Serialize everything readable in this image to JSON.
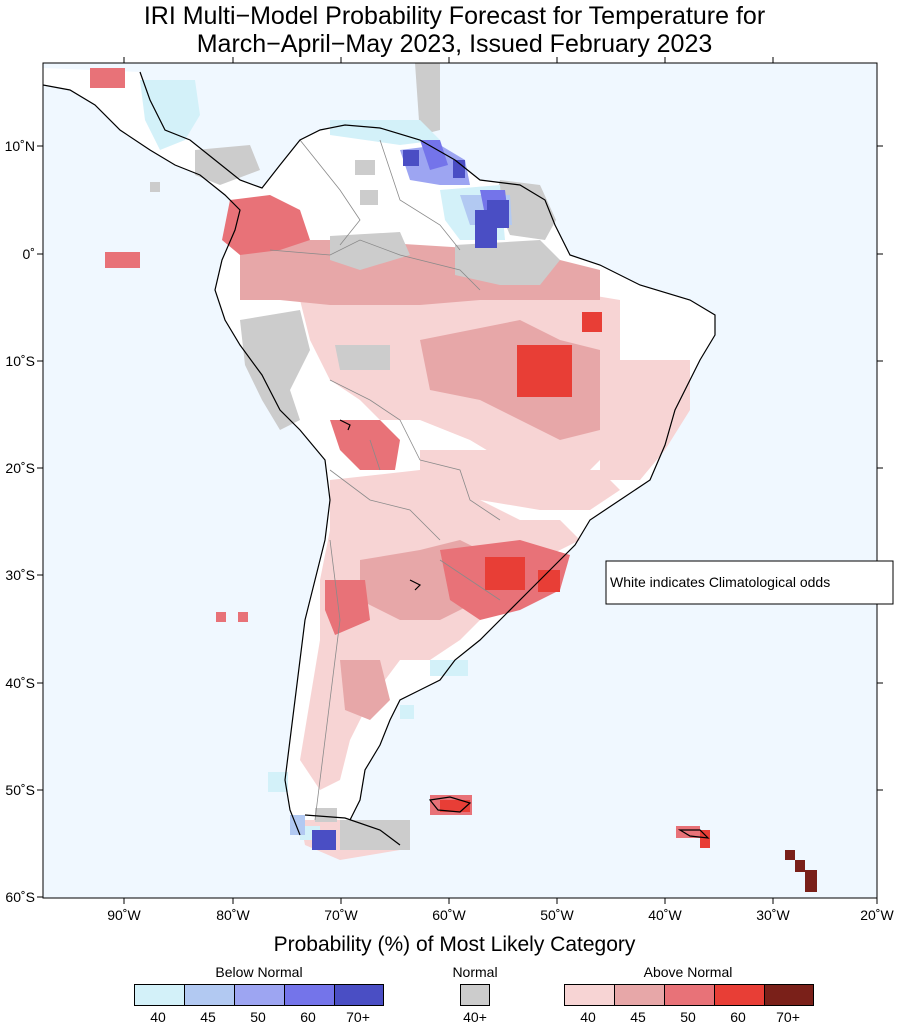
{
  "title_line1": "IRI Multi−Model Probability Forecast for Temperature for",
  "title_line2": "March−April−May 2023, Issued February 2023",
  "map": {
    "lon_ticks": [
      "90˚W",
      "80˚W",
      "70˚W",
      "60˚W",
      "50˚W",
      "40˚W",
      "30˚W",
      "20˚W"
    ],
    "lat_ticks": [
      "10˚N",
      "0˚",
      "10˚S",
      "20˚S",
      "30˚S",
      "40˚S",
      "50˚S",
      "60˚S"
    ],
    "annotation": "White indicates Climatological odds",
    "ocean_color": "#f0f8ff"
  },
  "legend": {
    "title": "Probability (%) of Most Likely Category",
    "below": {
      "label": "Below Normal",
      "ticks": [
        "40",
        "45",
        "50",
        "60",
        "70+"
      ],
      "colors": [
        "#d3f1f9",
        "#b2c9f2",
        "#9da5f2",
        "#7474ea",
        "#4a4ec4"
      ]
    },
    "normal": {
      "label": "Normal",
      "ticks": [
        "40+"
      ],
      "colors": [
        "#cccccc"
      ]
    },
    "above": {
      "label": "Above Normal",
      "ticks": [
        "40",
        "45",
        "50",
        "60",
        "70+"
      ],
      "colors": [
        "#f7d4d4",
        "#e7a7a8",
        "#e87278",
        "#e83e36",
        "#7a2019"
      ]
    }
  }
}
